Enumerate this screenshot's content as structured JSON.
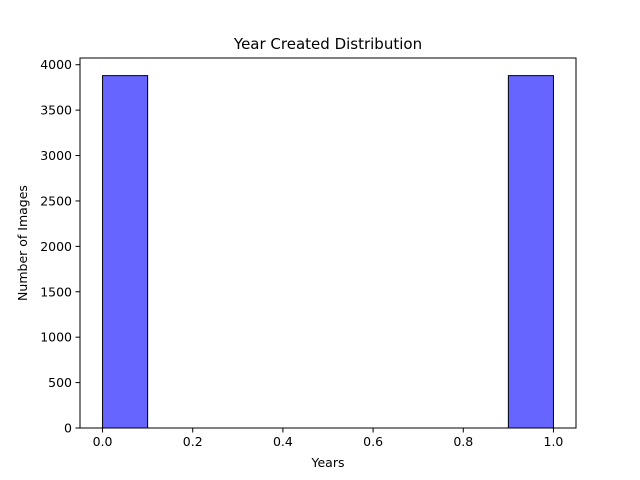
{
  "chart_data": {
    "type": "bar",
    "title": "Year Created Distribution",
    "xlabel": "Years",
    "ylabel": "Number of Images",
    "bins": [
      {
        "x0": 0.0,
        "x1": 0.1,
        "value": 3880
      },
      {
        "x0": 0.1,
        "x1": 0.2,
        "value": 0
      },
      {
        "x0": 0.2,
        "x1": 0.3,
        "value": 0
      },
      {
        "x0": 0.3,
        "x1": 0.4,
        "value": 0
      },
      {
        "x0": 0.4,
        "x1": 0.5,
        "value": 0
      },
      {
        "x0": 0.5,
        "x1": 0.6,
        "value": 0
      },
      {
        "x0": 0.6,
        "x1": 0.7,
        "value": 0
      },
      {
        "x0": 0.7,
        "x1": 0.8,
        "value": 0
      },
      {
        "x0": 0.8,
        "x1": 0.9,
        "value": 0
      },
      {
        "x0": 0.9,
        "x1": 1.0,
        "value": 3880
      }
    ],
    "xlim": [
      -0.05,
      1.05
    ],
    "ylim": [
      0,
      4074
    ],
    "xticks": [
      0.0,
      0.2,
      0.4,
      0.6,
      0.8,
      1.0
    ],
    "xtick_labels": [
      "0.0",
      "0.2",
      "0.4",
      "0.6",
      "0.8",
      "1.0"
    ],
    "yticks": [
      0,
      500,
      1000,
      1500,
      2000,
      2500,
      3000,
      3500,
      4000
    ],
    "ytick_labels": [
      "0",
      "500",
      "1000",
      "1500",
      "2000",
      "2500",
      "3000",
      "3500",
      "4000"
    ],
    "bar_color": "#6666ff",
    "bar_edge_color": "#000000",
    "grid": false
  }
}
